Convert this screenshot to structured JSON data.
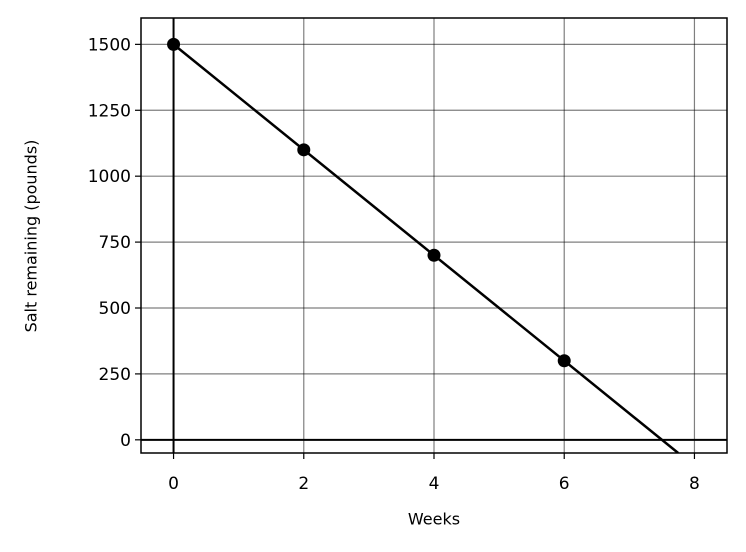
{
  "chart_data": {
    "type": "line",
    "x_label": "Weeks",
    "y_label": "Salt remaining (pounds)",
    "series": [
      {
        "mode": "line",
        "color": "#000000",
        "x": [
          0,
          7.75
        ],
        "values": [
          1500,
          -50
        ]
      },
      {
        "mode": "markers",
        "color": "#000000",
        "x": [
          0,
          2,
          4,
          6
        ],
        "values": [
          1500,
          1100,
          700,
          300
        ]
      }
    ],
    "xlim": [
      -0.5,
      8.5
    ],
    "xticks": [
      0,
      2,
      4,
      6,
      8
    ],
    "ylim": [
      -50,
      1600
    ],
    "yticks": [
      0,
      250,
      500,
      750,
      1000,
      1250,
      1500
    ],
    "grid": true,
    "zero_lines": true
  }
}
